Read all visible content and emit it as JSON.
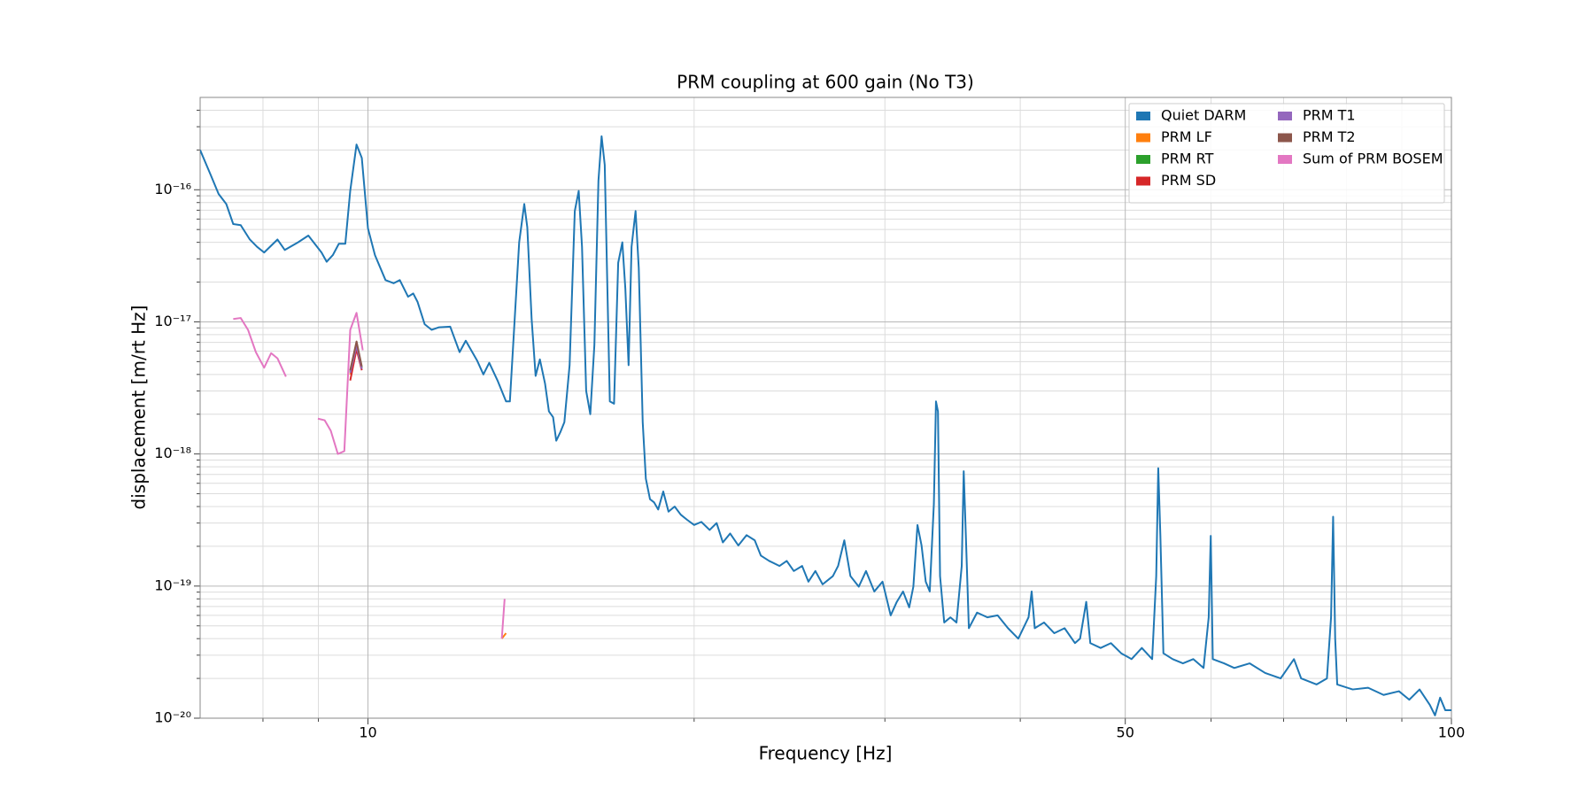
{
  "chart_data": {
    "type": "line",
    "title": "PRM coupling at 600 gain (No T3)",
    "xlabel": "Frequency [Hz]",
    "ylabel": "displacement [m/rt Hz]",
    "xscale": "log",
    "yscale": "log",
    "grid": true,
    "legend": "upper right",
    "legend_columns": 2,
    "xlim": [
      7,
      100
    ],
    "xticks": [
      10,
      50,
      100
    ],
    "xminorticks": [
      8,
      9,
      20,
      30,
      40,
      60,
      70,
      80,
      90
    ],
    "ylim": [
      1e-20,
      5e-16
    ],
    "yticks": [
      {
        "value": 1e-20,
        "label": "10⁻²⁰"
      },
      {
        "value": 1e-19,
        "label": "10⁻¹⁹"
      },
      {
        "value": 1e-18,
        "label": "10⁻¹⁸"
      },
      {
        "value": 1e-17,
        "label": "10⁻¹⁷"
      },
      {
        "value": 1e-16,
        "label": "10⁻¹⁶"
      }
    ],
    "yminorticks": [
      2e-20,
      3e-20,
      4e-20,
      5e-20,
      6e-20,
      7e-20,
      8e-20,
      9e-20,
      2e-19,
      3e-19,
      4e-19,
      5e-19,
      6e-19,
      7e-19,
      8e-19,
      9e-19,
      2e-18,
      3e-18,
      4e-18,
      5e-18,
      6e-18,
      7e-18,
      8e-18,
      9e-18,
      2e-17,
      3e-17,
      4e-17,
      5e-17,
      6e-17,
      7e-17,
      8e-17,
      9e-17,
      2e-16,
      3e-16,
      4e-16
    ],
    "series": [
      {
        "name": "Quiet DARM",
        "color": "#1f77b4",
        "x": [
          7.0,
          7.16,
          7.28,
          7.4,
          7.51,
          7.63,
          7.78,
          7.9,
          8.02,
          8.25,
          8.38,
          8.62,
          8.81,
          9.06,
          9.16,
          9.28,
          9.4,
          9.53,
          9.63,
          9.76,
          9.87,
          10.0,
          10.15,
          10.38,
          10.56,
          10.7,
          10.89,
          11.01,
          11.11,
          11.28,
          11.45,
          11.63,
          11.91,
          12.15,
          12.31,
          12.61,
          12.78,
          12.94,
          13.17,
          13.41,
          13.52,
          13.79,
          13.94,
          14.03,
          14.16,
          14.28,
          14.41,
          14.57,
          14.69,
          14.82,
          14.92,
          15.05,
          15.18,
          15.35,
          15.52,
          15.65,
          15.76,
          15.9,
          16.04,
          16.18,
          16.32,
          16.43,
          16.54,
          16.72,
          16.87,
          17.02,
          17.17,
          17.28,
          17.4,
          17.51,
          17.66,
          17.78,
          17.93,
          18.05,
          18.21,
          18.37,
          18.53,
          18.73,
          18.94,
          19.19,
          19.44,
          19.7,
          20.0,
          20.31,
          20.67,
          20.98,
          21.26,
          21.59,
          21.97,
          22.36,
          22.75,
          23.05,
          23.46,
          23.98,
          24.35,
          24.72,
          25.16,
          25.5,
          25.88,
          26.28,
          26.86,
          27.16,
          27.52,
          27.88,
          28.38,
          28.82,
          29.33,
          29.85,
          30.37,
          30.77,
          31.18,
          31.59,
          31.87,
          32.15,
          32.43,
          32.72,
          33.0,
          33.29,
          33.44,
          33.58,
          33.73,
          34.03,
          34.48,
          34.93,
          35.32,
          35.47,
          35.63,
          35.86,
          36.49,
          37.3,
          38.12,
          38.97,
          39.83,
          40.71,
          40.98,
          41.25,
          42.07,
          43.0,
          43.95,
          44.93,
          45.42,
          46.02,
          46.42,
          47.45,
          48.5,
          49.57,
          50.67,
          51.79,
          52.94,
          53.4,
          53.63,
          53.87,
          54.22,
          55.3,
          56.52,
          57.77,
          59.05,
          59.7,
          59.96,
          60.22,
          61.68,
          63.04,
          65.14,
          67.31,
          69.56,
          71.56,
          72.66,
          75.09,
          76.75,
          77.43,
          77.77,
          78.11,
          78.45,
          81.07,
          83.77,
          86.57,
          89.45,
          91.43,
          93.45,
          95.52,
          96.57,
          97.63,
          98.7,
          100.0
        ],
        "values": [
          2e-16,
          1.29e-16,
          9.3e-17,
          7.8e-17,
          5.5e-17,
          5.4e-17,
          4.2e-17,
          3.7e-17,
          3.35e-17,
          4.2e-17,
          3.5e-17,
          4e-17,
          4.5e-17,
          3.35e-17,
          2.85e-17,
          3.2e-17,
          3.9e-17,
          3.9e-17,
          9.8e-17,
          2.2e-16,
          1.74e-16,
          5.1e-17,
          3.2e-17,
          2.07e-17,
          1.96e-17,
          2.07e-17,
          1.55e-17,
          1.64e-17,
          1.42e-17,
          9.6e-18,
          8.7e-18,
          9.1e-18,
          9.2e-18,
          5.9e-18,
          7.2e-18,
          5.1e-18,
          4e-18,
          4.9e-18,
          3.6e-18,
          2.5e-18,
          2.5e-18,
          4e-17,
          7.8e-17,
          5.2e-17,
          1.05e-17,
          3.9e-18,
          5.2e-18,
          3.4e-18,
          2.1e-18,
          1.9e-18,
          1.26e-18,
          1.46e-18,
          1.74e-18,
          4.7e-18,
          6.9e-17,
          9.8e-17,
          3.7e-17,
          3e-18,
          2e-18,
          6.7e-18,
          1.17e-16,
          2.54e-16,
          1.54e-16,
          2.5e-18,
          2.4e-18,
          2.8e-17,
          4e-17,
          1.79e-17,
          4.7e-18,
          3.7e-17,
          6.9e-17,
          2.56e-17,
          1.74e-18,
          6.5e-19,
          4.55e-19,
          4.3e-19,
          3.8e-19,
          5.2e-19,
          3.66e-19,
          4e-19,
          3.47e-19,
          3.18e-19,
          2.9e-19,
          3.06e-19,
          2.66e-19,
          3e-19,
          2.14e-19,
          2.5e-19,
          2.03e-19,
          2.43e-19,
          2.22e-19,
          1.7e-19,
          1.55e-19,
          1.42e-19,
          1.55e-19,
          1.3e-19,
          1.42e-19,
          1.08e-19,
          1.3e-19,
          1.03e-19,
          1.19e-19,
          1.42e-19,
          2.22e-19,
          1.19e-19,
          9.9e-20,
          1.3e-19,
          9.1e-20,
          1.08e-19,
          6e-20,
          7.6e-20,
          9.1e-20,
          6.9e-20,
          9.9e-20,
          2.9e-19,
          2.03e-19,
          1.08e-19,
          9.1e-20,
          4.2e-19,
          2.5e-18,
          2.1e-18,
          1.19e-19,
          5.3e-20,
          5.8e-20,
          5.3e-20,
          1.42e-19,
          7.4e-19,
          2.43e-19,
          4.8e-20,
          6.3e-20,
          5.8e-20,
          6e-20,
          4.8e-20,
          4e-20,
          5.8e-20,
          9.1e-20,
          4.8e-20,
          5.3e-20,
          4.4e-20,
          4.8e-20,
          3.7e-20,
          4e-20,
          7.6e-20,
          3.7e-20,
          3.4e-20,
          3.7e-20,
          3.1e-20,
          2.8e-20,
          3.4e-20,
          2.8e-20,
          1.19e-19,
          7.8e-19,
          2.43e-19,
          3.1e-20,
          2.8e-20,
          2.6e-20,
          2.8e-20,
          2.4e-20,
          5.8e-20,
          2.4e-19,
          2.8e-20,
          2.6e-20,
          2.4e-20,
          2.6e-20,
          2.2e-20,
          2e-20,
          2.8e-20,
          2e-20,
          1.8e-20,
          2e-20,
          5.8e-20,
          3.35e-19,
          4e-20,
          1.8e-20,
          1.65e-20,
          1.7e-20,
          1.5e-20,
          1.6e-20,
          1.38e-20,
          1.65e-20,
          1.26e-20,
          1.05e-20,
          1.43e-20,
          1.15e-20,
          1.15e-20
        ]
      },
      {
        "name": "PRM LF",
        "color": "#ff7f0e",
        "x": [
          9.63,
          9.76,
          9.87,
          null,
          13.29,
          13.41
        ],
        "values": [
          4e-18,
          6.5e-18,
          4.4e-18,
          null,
          4e-20,
          4.4e-20
        ]
      },
      {
        "name": "PRM RT",
        "color": "#2ca02c",
        "x": [
          9.63,
          9.76,
          9.87
        ],
        "values": [
          4.2e-18,
          6.8e-18,
          4.5e-18
        ]
      },
      {
        "name": "PRM SD",
        "color": "#d62728",
        "x": [
          9.63,
          9.76,
          9.87
        ],
        "values": [
          3.6e-18,
          6.2e-18,
          4.3e-18
        ]
      },
      {
        "name": "PRM T1",
        "color": "#9467bd",
        "x": [
          9.63,
          9.76,
          9.87
        ],
        "values": [
          4.1e-18,
          6.6e-18,
          4.4e-18
        ]
      },
      {
        "name": "PRM T2",
        "color": "#8c564b",
        "x": [
          9.63,
          9.76,
          9.87
        ],
        "values": [
          4.3e-18,
          7.1e-18,
          4.6e-18
        ]
      },
      {
        "name": "Sum of PRM BOSEM",
        "color": "#e377c2",
        "x": [
          7.51,
          7.63,
          7.75,
          7.88,
          8.02,
          8.14,
          8.25,
          8.4,
          null,
          8.99,
          9.12,
          9.24,
          9.38,
          9.51,
          9.63,
          9.76,
          9.89,
          null,
          13.29,
          13.37
        ],
        "values": [
          1.05e-17,
          1.07e-17,
          8.7e-18,
          5.9e-18,
          4.5e-18,
          5.8e-18,
          5.3e-18,
          3.85e-18,
          null,
          1.85e-18,
          1.8e-18,
          1.5e-18,
          1e-18,
          1.05e-18,
          8.7e-18,
          1.17e-17,
          6.1e-18,
          null,
          4e-20,
          8e-20
        ]
      }
    ]
  }
}
